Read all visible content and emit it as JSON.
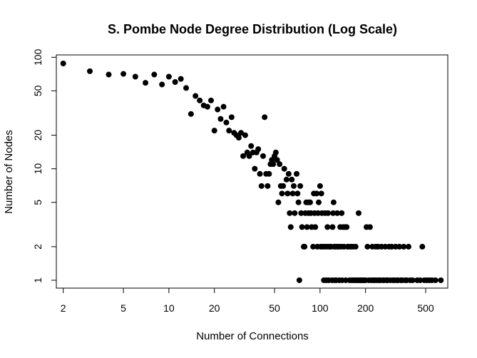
{
  "chart_data": {
    "type": "scatter",
    "title": "S. Pombe Node Degree Distribution (Log Scale)",
    "xlabel": "Number of Connections",
    "ylabel": "Number of Nodes",
    "x_scale": "log",
    "y_scale": "log",
    "xlim": [
      1.8,
      700
    ],
    "ylim": [
      0.85,
      105
    ],
    "x_ticks": [
      2,
      5,
      10,
      20,
      50,
      100,
      200,
      500
    ],
    "y_ticks": [
      1,
      2,
      5,
      10,
      20,
      50,
      100
    ],
    "grid": false,
    "legend": "none",
    "marker_color": "#000000",
    "points": [
      [
        2,
        88
      ],
      [
        3,
        75
      ],
      [
        4,
        70
      ],
      [
        5,
        71
      ],
      [
        6,
        67
      ],
      [
        7,
        59
      ],
      [
        8,
        70
      ],
      [
        9,
        57
      ],
      [
        10,
        67
      ],
      [
        11,
        60
      ],
      [
        12,
        64
      ],
      [
        13,
        53
      ],
      [
        14,
        31
      ],
      [
        15,
        45
      ],
      [
        16,
        41
      ],
      [
        17,
        37
      ],
      [
        18,
        36
      ],
      [
        19,
        41
      ],
      [
        20,
        22
      ],
      [
        21,
        34
      ],
      [
        22,
        28
      ],
      [
        23,
        36
      ],
      [
        24,
        26
      ],
      [
        25,
        22
      ],
      [
        26,
        29
      ],
      [
        27,
        21
      ],
      [
        28,
        20
      ],
      [
        29,
        19
      ],
      [
        30,
        21
      ],
      [
        31,
        13
      ],
      [
        32,
        20
      ],
      [
        33,
        14
      ],
      [
        34,
        13
      ],
      [
        35,
        16
      ],
      [
        36,
        14
      ],
      [
        37,
        10
      ],
      [
        38,
        14
      ],
      [
        39,
        15
      ],
      [
        40,
        9
      ],
      [
        41,
        7
      ],
      [
        42,
        13
      ],
      [
        43,
        29
      ],
      [
        44,
        9
      ],
      [
        45,
        7
      ],
      [
        46,
        9
      ],
      [
        47,
        11
      ],
      [
        48,
        12
      ],
      [
        49,
        11
      ],
      [
        50,
        13
      ],
      [
        51,
        14
      ],
      [
        52,
        12
      ],
      [
        53,
        5
      ],
      [
        54,
        11
      ],
      [
        55,
        7
      ],
      [
        56,
        6
      ],
      [
        57,
        7
      ],
      [
        58,
        10
      ],
      [
        60,
        8
      ],
      [
        61,
        6
      ],
      [
        62,
        9
      ],
      [
        63,
        4
      ],
      [
        64,
        3
      ],
      [
        65,
        8
      ],
      [
        66,
        6
      ],
      [
        67,
        7
      ],
      [
        68,
        4
      ],
      [
        70,
        9
      ],
      [
        71,
        6
      ],
      [
        72,
        5
      ],
      [
        73,
        1
      ],
      [
        74,
        7
      ],
      [
        75,
        4
      ],
      [
        76,
        3
      ],
      [
        78,
        2
      ],
      [
        79,
        2
      ],
      [
        80,
        4
      ],
      [
        81,
        5
      ],
      [
        82,
        3
      ],
      [
        83,
        5
      ],
      [
        84,
        4
      ],
      [
        85,
        5
      ],
      [
        86,
        5
      ],
      [
        87,
        4
      ],
      [
        88,
        3
      ],
      [
        90,
        2
      ],
      [
        91,
        6
      ],
      [
        92,
        4
      ],
      [
        93,
        3
      ],
      [
        95,
        6
      ],
      [
        96,
        2
      ],
      [
        97,
        4
      ],
      [
        98,
        5
      ],
      [
        100,
        7
      ],
      [
        101,
        2
      ],
      [
        102,
        6
      ],
      [
        103,
        4
      ],
      [
        104,
        2
      ],
      [
        106,
        1
      ],
      [
        107,
        2
      ],
      [
        108,
        4
      ],
      [
        110,
        1
      ],
      [
        111,
        2
      ],
      [
        112,
        3
      ],
      [
        113,
        4
      ],
      [
        114,
        1
      ],
      [
        115,
        2
      ],
      [
        117,
        2
      ],
      [
        118,
        2
      ],
      [
        120,
        1
      ],
      [
        121,
        3
      ],
      [
        122,
        4
      ],
      [
        123,
        5
      ],
      [
        124,
        2
      ],
      [
        125,
        1
      ],
      [
        127,
        2
      ],
      [
        128,
        1
      ],
      [
        130,
        4
      ],
      [
        131,
        2
      ],
      [
        133,
        2
      ],
      [
        134,
        1
      ],
      [
        136,
        3
      ],
      [
        138,
        2
      ],
      [
        139,
        4
      ],
      [
        140,
        1
      ],
      [
        142,
        3
      ],
      [
        144,
        2
      ],
      [
        146,
        3
      ],
      [
        148,
        1
      ],
      [
        150,
        3
      ],
      [
        152,
        2
      ],
      [
        155,
        2
      ],
      [
        157,
        1
      ],
      [
        160,
        2
      ],
      [
        162,
        1
      ],
      [
        165,
        2
      ],
      [
        167,
        1
      ],
      [
        170,
        1
      ],
      [
        172,
        2
      ],
      [
        175,
        1
      ],
      [
        178,
        1
      ],
      [
        180,
        4
      ],
      [
        183,
        1
      ],
      [
        186,
        1
      ],
      [
        190,
        1
      ],
      [
        193,
        1
      ],
      [
        196,
        1
      ],
      [
        200,
        1
      ],
      [
        203,
        3
      ],
      [
        206,
        2
      ],
      [
        210,
        1
      ],
      [
        214,
        3
      ],
      [
        218,
        1
      ],
      [
        222,
        2
      ],
      [
        226,
        1
      ],
      [
        230,
        1
      ],
      [
        234,
        2
      ],
      [
        238,
        1
      ],
      [
        242,
        2
      ],
      [
        246,
        1
      ],
      [
        250,
        1
      ],
      [
        255,
        2
      ],
      [
        260,
        1
      ],
      [
        265,
        1
      ],
      [
        270,
        2
      ],
      [
        275,
        1
      ],
      [
        280,
        1
      ],
      [
        286,
        2
      ],
      [
        292,
        1
      ],
      [
        298,
        2
      ],
      [
        304,
        1
      ],
      [
        310,
        1
      ],
      [
        316,
        2
      ],
      [
        322,
        1
      ],
      [
        328,
        1
      ],
      [
        335,
        2
      ],
      [
        342,
        1
      ],
      [
        350,
        1
      ],
      [
        358,
        2
      ],
      [
        366,
        1
      ],
      [
        375,
        1
      ],
      [
        385,
        2
      ],
      [
        395,
        1
      ],
      [
        410,
        1
      ],
      [
        440,
        1
      ],
      [
        460,
        1
      ],
      [
        475,
        2
      ],
      [
        490,
        1
      ],
      [
        510,
        1
      ],
      [
        530,
        1
      ],
      [
        550,
        1
      ],
      [
        580,
        1
      ],
      [
        630,
        1
      ]
    ]
  }
}
